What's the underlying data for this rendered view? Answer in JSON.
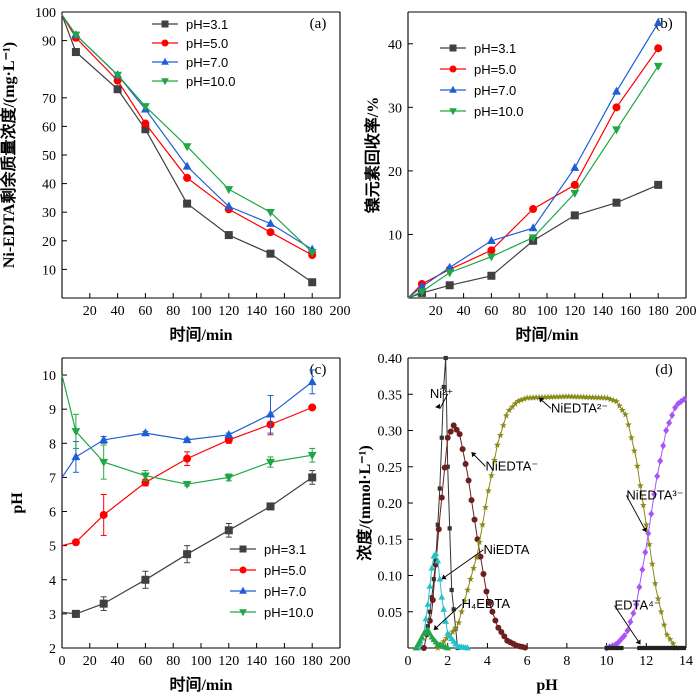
{
  "chart_data": [
    {
      "panel": "(a)",
      "type": "line",
      "xlabel": "时间/min",
      "ylabel": "Ni-EDTA剩余质量浓度/(mg·L⁻¹)",
      "xlim": [
        0,
        200
      ],
      "ylim": [
        0,
        100
      ],
      "xticks": [
        20,
        40,
        60,
        80,
        100,
        120,
        140,
        160,
        180,
        200
      ],
      "yticks": [
        10,
        20,
        30,
        40,
        50,
        60,
        70,
        90,
        100
      ],
      "legend_position": "top-center",
      "series": [
        {
          "name": "pH=3.1",
          "color": "#404040",
          "marker": "square",
          "x": [
            0,
            10,
            40,
            60,
            90,
            120,
            150,
            180
          ],
          "y": [
            99,
            86,
            73,
            59,
            33,
            22,
            15.5,
            5.5
          ]
        },
        {
          "name": "pH=5.0",
          "color": "#ff0000",
          "marker": "circle",
          "x": [
            0,
            10,
            40,
            60,
            90,
            120,
            150,
            180
          ],
          "y": [
            99,
            91,
            76,
            61,
            42,
            31,
            23,
            15
          ]
        },
        {
          "name": "pH=7.0",
          "color": "#1f5fd6",
          "marker": "triangle-up",
          "x": [
            0,
            10,
            40,
            60,
            90,
            120,
            150,
            180
          ],
          "y": [
            99,
            92,
            78,
            66,
            46,
            32,
            26,
            17
          ]
        },
        {
          "name": "pH=10.0",
          "color": "#21a645",
          "marker": "triangle-down",
          "x": [
            0,
            10,
            40,
            60,
            90,
            120,
            150,
            180
          ],
          "y": [
            99,
            92,
            78,
            67,
            53,
            38,
            30,
            16
          ]
        }
      ]
    },
    {
      "panel": "(b)",
      "type": "line",
      "xlabel": "时间/min",
      "ylabel": "镍元素回收率/%",
      "xlim": [
        0,
        200
      ],
      "ylim": [
        0,
        45
      ],
      "xticks": [
        20,
        40,
        60,
        80,
        100,
        120,
        140,
        160,
        180,
        200
      ],
      "yticks": [
        10,
        20,
        30,
        40
      ],
      "legend_position": "top-left",
      "series": [
        {
          "name": "pH=3.1",
          "color": "#404040",
          "marker": "square",
          "x": [
            0,
            10,
            30,
            60,
            90,
            120,
            150,
            180
          ],
          "y": [
            0,
            0.8,
            2,
            3.5,
            9,
            13,
            15,
            17.8
          ]
        },
        {
          "name": "pH=5.0",
          "color": "#ff0000",
          "marker": "circle",
          "x": [
            0,
            10,
            30,
            60,
            90,
            120,
            150,
            180
          ],
          "y": [
            0,
            2.2,
            4.5,
            7.5,
            14,
            17.8,
            30,
            39.3
          ]
        },
        {
          "name": "pH=7.0",
          "color": "#1f5fd6",
          "marker": "triangle-up",
          "x": [
            0,
            10,
            30,
            60,
            90,
            120,
            150,
            180
          ],
          "y": [
            0,
            1.8,
            4.8,
            9,
            11,
            20.5,
            32.5,
            43.3
          ]
        },
        {
          "name": "pH=10.0",
          "color": "#21a645",
          "marker": "triangle-down",
          "x": [
            0,
            10,
            30,
            60,
            90,
            120,
            150,
            180
          ],
          "y": [
            0,
            1,
            4,
            6.5,
            9.5,
            16.5,
            26.5,
            36.5
          ]
        }
      ]
    },
    {
      "panel": "(c)",
      "type": "line",
      "xlabel": "时间/min",
      "ylabel": "pH",
      "xlim": [
        0,
        200
      ],
      "ylim": [
        2,
        10.5
      ],
      "xticks": [
        0,
        20,
        40,
        60,
        80,
        100,
        120,
        140,
        160,
        180,
        200
      ],
      "yticks": [
        2,
        3,
        4,
        5,
        6,
        7,
        8,
        9,
        10
      ],
      "legend_position": "bottom-right",
      "series": [
        {
          "name": "pH=3.1",
          "color": "#404040",
          "marker": "square",
          "x": [
            0,
            10,
            30,
            60,
            90,
            120,
            150,
            180
          ],
          "y": [
            3.05,
            3.0,
            3.3,
            4.0,
            4.75,
            5.45,
            6.15,
            7.0
          ],
          "err": [
            0,
            0.1,
            0.2,
            0.25,
            0.25,
            0.2,
            0.05,
            0.2
          ]
        },
        {
          "name": "pH=5.0",
          "color": "#ff0000",
          "marker": "circle",
          "x": [
            0,
            10,
            30,
            60,
            90,
            120,
            150,
            180
          ],
          "y": [
            5.0,
            5.1,
            5.9,
            6.85,
            7.55,
            8.1,
            8.55,
            9.05
          ],
          "err": [
            0,
            0.05,
            0.6,
            0.1,
            0.2,
            0.1,
            0.3,
            0.05
          ]
        },
        {
          "name": "pH=7.0",
          "color": "#1f5fd6",
          "marker": "triangle-up",
          "x": [
            0,
            10,
            30,
            60,
            90,
            120,
            150,
            180
          ],
          "y": [
            7.0,
            7.6,
            8.1,
            8.3,
            8.1,
            8.25,
            8.85,
            9.8
          ],
          "err": [
            0,
            0.45,
            0.1,
            0.05,
            0.05,
            0.05,
            0.55,
            0.35
          ]
        },
        {
          "name": "pH=10.0",
          "color": "#21a645",
          "marker": "triangle-down",
          "x": [
            0,
            10,
            30,
            60,
            90,
            120,
            150,
            180
          ],
          "y": [
            10.0,
            8.35,
            7.45,
            7.05,
            6.8,
            7.0,
            7.45,
            7.65
          ],
          "err": [
            0,
            0.5,
            0.5,
            0.15,
            0.05,
            0.1,
            0.15,
            0.2
          ]
        }
      ]
    },
    {
      "panel": "(d)",
      "type": "line",
      "xlabel": "pH",
      "ylabel": "浓度/(mmol·L⁻¹)",
      "xlim": [
        0,
        14
      ],
      "ylim": [
        0,
        0.4
      ],
      "xticks": [
        0,
        2,
        4,
        6,
        8,
        10,
        12,
        14
      ],
      "yticks": [
        0.05,
        0.1,
        0.15,
        0.2,
        0.25,
        0.3,
        0.35,
        0.4
      ],
      "ytick_labels": [
        "0.05",
        "0.10",
        "0.15",
        "0.20",
        "0.25",
        "0.30",
        "0.35",
        "0.40"
      ],
      "series": [
        {
          "name": "Ni²⁺",
          "color": "#333333",
          "marker": "square-small",
          "x": [
            1.0,
            1.2,
            1.4,
            1.6,
            1.8,
            1.9,
            2.0,
            2.2,
            2.5
          ],
          "y": [
            0.03,
            0.07,
            0.12,
            0.22,
            0.36,
            0.4,
            0.25,
            0.08,
            0.0
          ]
        },
        {
          "name": "NiEDTA⁻",
          "color": "#6b1f1f",
          "marker": "circle",
          "x": [
            0.8,
            1.2,
            1.6,
            2.0,
            2.3,
            2.6,
            3.0,
            3.5,
            4.0,
            4.5,
            5.0,
            5.5,
            6.0
          ],
          "y": [
            0.0,
            0.05,
            0.18,
            0.29,
            0.307,
            0.295,
            0.24,
            0.15,
            0.07,
            0.03,
            0.01,
            0.003,
            0.0
          ]
        },
        {
          "name": "NiEDTA²⁻",
          "color": "#8a8a1a",
          "marker": "star",
          "x": [
            1.5,
            2.5,
            3.5,
            4.0,
            4.5,
            5.0,
            5.5,
            6.0,
            8.0,
            10.0,
            10.5,
            11.0,
            11.5,
            12.0,
            12.5,
            13.0,
            13.5
          ],
          "y": [
            0.0,
            0.03,
            0.13,
            0.21,
            0.28,
            0.325,
            0.34,
            0.345,
            0.347,
            0.345,
            0.34,
            0.32,
            0.26,
            0.17,
            0.08,
            0.02,
            0.0
          ]
        },
        {
          "name": "NiEDTA³⁻",
          "color": "#a855f7",
          "marker": "diamond",
          "x": [
            10.0,
            10.5,
            11.0,
            11.5,
            12.0,
            12.5,
            13.0,
            13.5,
            14.0
          ],
          "y": [
            0.0,
            0.005,
            0.02,
            0.06,
            0.14,
            0.23,
            0.3,
            0.335,
            0.345
          ]
        },
        {
          "name": "NiEDTA",
          "color": "#22c2c9",
          "marker": "triangle-up",
          "x": [
            0.5,
            0.8,
            1.0,
            1.2,
            1.35,
            1.5,
            1.7,
            2.0,
            2.5,
            3.0
          ],
          "y": [
            0.0,
            0.02,
            0.06,
            0.11,
            0.135,
            0.12,
            0.07,
            0.02,
            0.002,
            0.0
          ]
        },
        {
          "name": "H₄EDTA",
          "color": "#21a645",
          "marker": "triangle-up",
          "x": [
            0.4,
            0.6,
            0.8,
            1.0,
            1.2,
            1.5,
            2.0
          ],
          "y": [
            0.0,
            0.01,
            0.02,
            0.025,
            0.015,
            0.005,
            0.0
          ]
        },
        {
          "name": "EDTA⁴⁻",
          "color": "#222222",
          "marker": "square-small",
          "x": [
            10.0,
            12.0,
            13.0,
            14.0
          ],
          "y": [
            0.0,
            0.0,
            0.0,
            0.0
          ]
        }
      ],
      "annotations": [
        {
          "text": "Ni²⁺",
          "x": 1.1,
          "y": 0.345
        },
        {
          "text": "NiEDTA⁻",
          "x": 3.9,
          "y": 0.245
        },
        {
          "text": "NiEDTA²⁻",
          "x": 7.2,
          "y": 0.325
        },
        {
          "text": "NiEDTA³⁻",
          "x": 11.0,
          "y": 0.205
        },
        {
          "text": "NiEDTA",
          "x": 3.8,
          "y": 0.13
        },
        {
          "text": "H₄EDTA",
          "x": 2.7,
          "y": 0.055
        },
        {
          "text": "EDTA⁴⁻",
          "x": 10.4,
          "y": 0.053
        }
      ]
    }
  ]
}
